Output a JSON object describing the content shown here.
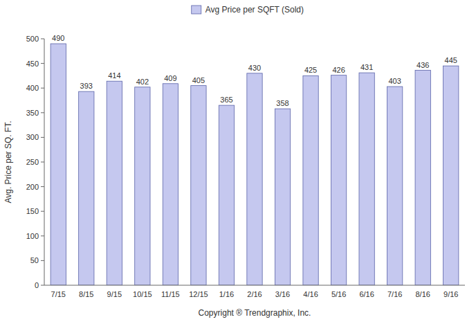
{
  "chart_data": {
    "type": "bar",
    "categories": [
      "7/15",
      "8/15",
      "9/15",
      "10/15",
      "11/15",
      "12/15",
      "1/16",
      "2/16",
      "3/16",
      "4/16",
      "5/16",
      "6/16",
      "7/16",
      "8/16",
      "9/16"
    ],
    "series": [
      {
        "name": "Avg Price per SQFT (Sold)",
        "color": "#c5c8ef",
        "values": [
          490,
          393,
          414,
          402,
          409,
          405,
          365,
          430,
          358,
          425,
          426,
          431,
          403,
          436,
          445
        ]
      }
    ],
    "x_label": "Copyright ® Trendgraphix, Inc.",
    "y_label": "Avg. Price per SQ. FT.",
    "ylim": [
      0,
      500
    ],
    "yticks": [
      0,
      50,
      100,
      150,
      200,
      250,
      300,
      350,
      400,
      450,
      500
    ],
    "grid": false,
    "legend": "top",
    "data_labels": true
  }
}
